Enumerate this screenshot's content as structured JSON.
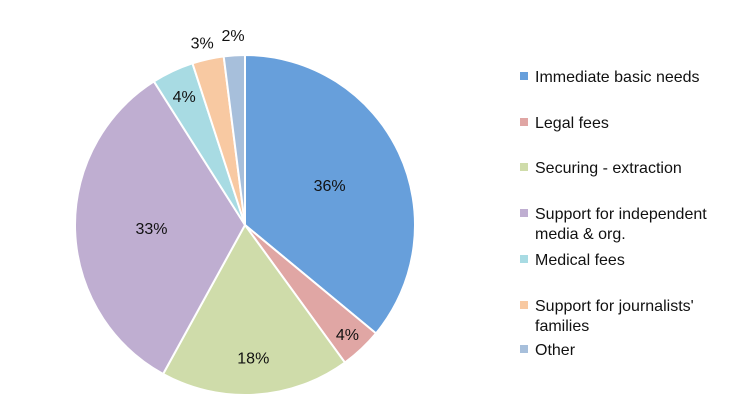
{
  "chart_data": {
    "type": "pie",
    "title": "",
    "start_angle_deg": 0,
    "direction": "clockwise",
    "legend_position": "right",
    "slices": [
      {
        "label": "Immediate basic needs",
        "value": 36,
        "value_label": "36%",
        "color": "#679fdb",
        "legend_lines": [
          "Immediate basic needs"
        ]
      },
      {
        "label": "Legal fees",
        "value": 4,
        "value_label": "4%",
        "color": "#e0a6a4",
        "legend_lines": [
          "Legal fees"
        ]
      },
      {
        "label": "Securing - extraction",
        "value": 18,
        "value_label": "18%",
        "color": "#cfdcaa",
        "legend_lines": [
          "Securing - extraction"
        ]
      },
      {
        "label": "Support for independent media & org.",
        "value": 33,
        "value_label": "33%",
        "color": "#bfaed1",
        "legend_lines": [
          "Support for independent",
          "media & org."
        ]
      },
      {
        "label": "Medical fees",
        "value": 4,
        "value_label": "4%",
        "color": "#a8dbe3",
        "legend_lines": [
          "Medical fees"
        ]
      },
      {
        "label": "Support for journalists' families",
        "value": 3,
        "value_label": "3%",
        "color": "#f8c9a2",
        "legend_lines": [
          "Support for journalists'",
          "families"
        ]
      },
      {
        "label": "Other",
        "value": 2,
        "value_label": "2%",
        "color": "#a7bfdb",
        "legend_lines": [
          "Other"
        ]
      }
    ]
  }
}
